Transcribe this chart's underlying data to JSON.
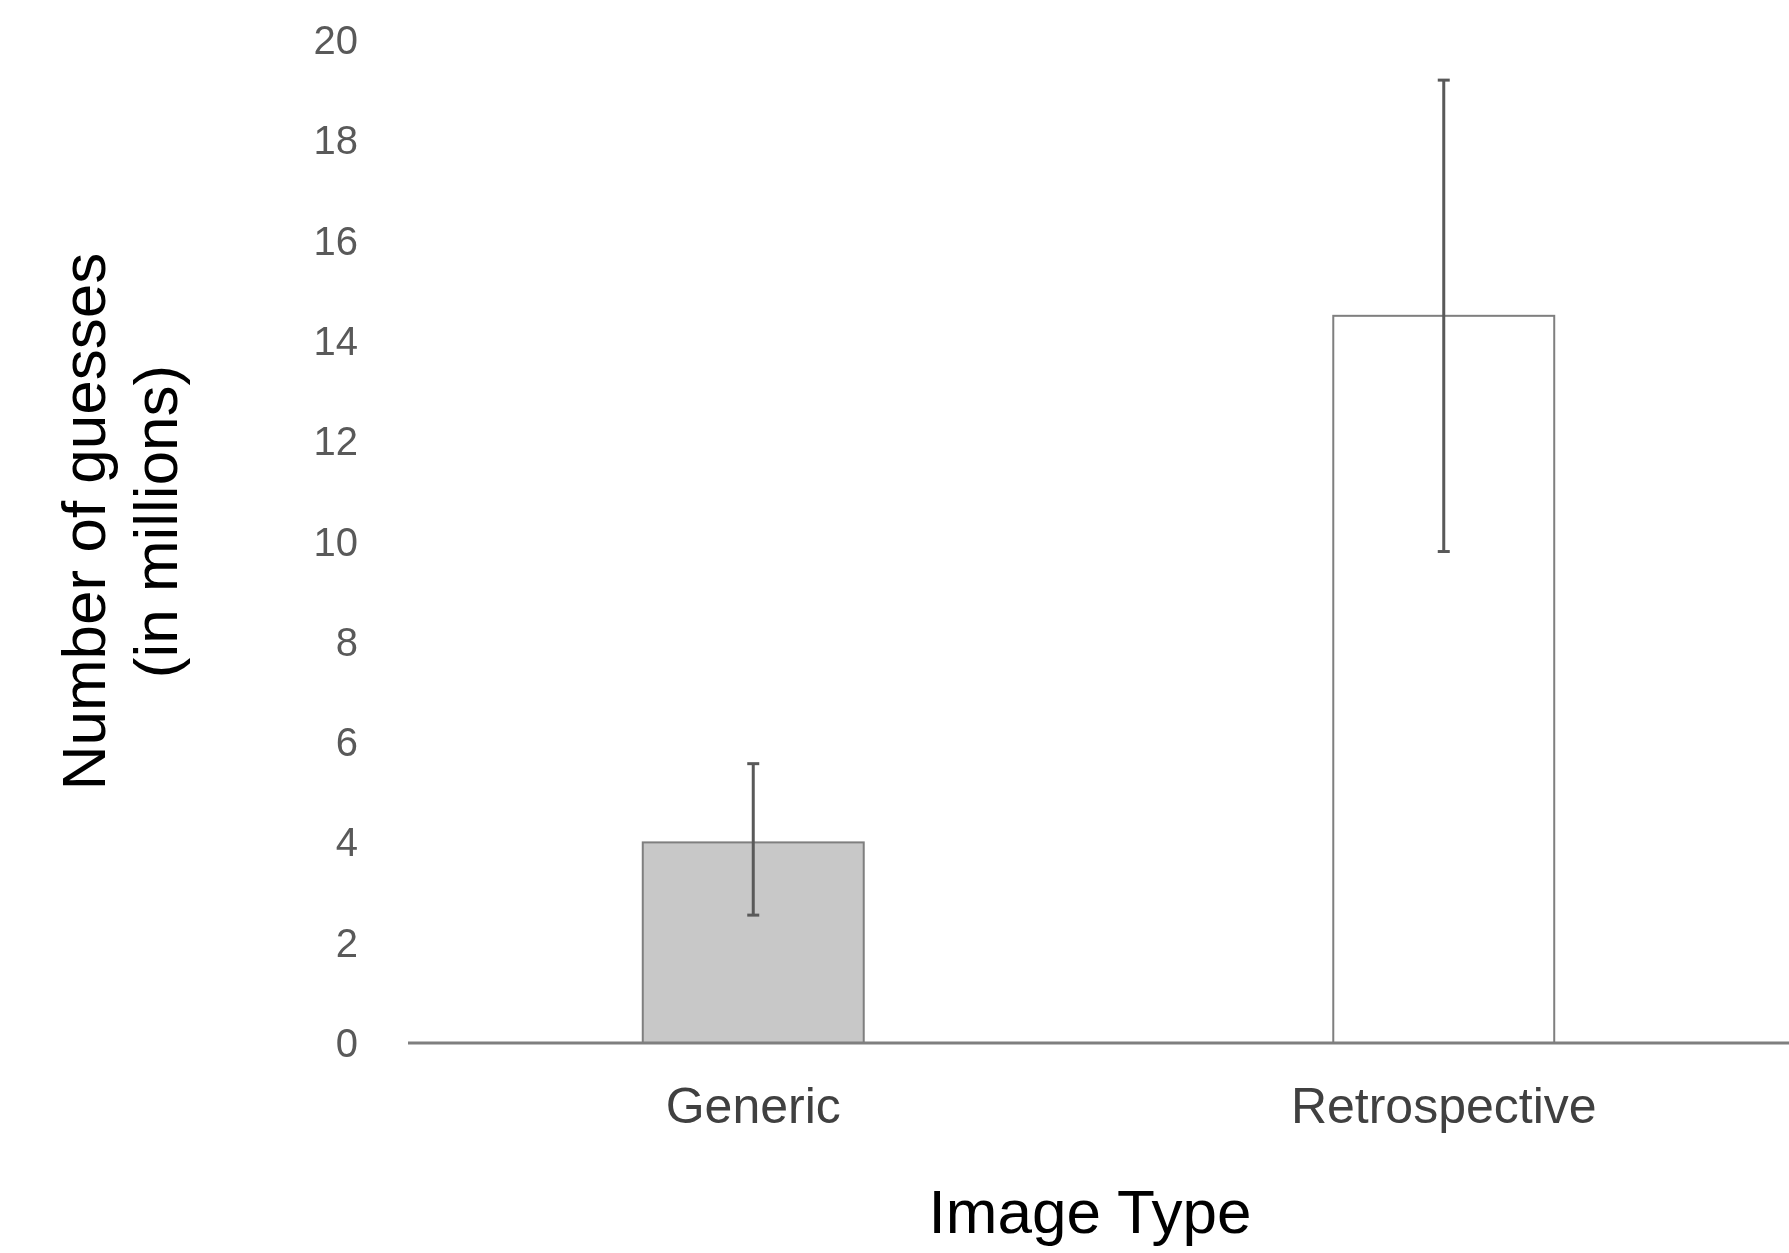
{
  "chart_data": {
    "type": "bar",
    "xlabel": "Image Type",
    "ylabel": "Number of guesses\n(in millions)",
    "categories": [
      "Generic",
      "Retrospective"
    ],
    "values": [
      4.0,
      14.5
    ],
    "errors": [
      [
        2.55,
        5.57
      ],
      [
        9.8,
        19.2
      ]
    ],
    "colors": [
      "#c8c8c8",
      "#ffffff"
    ],
    "ylim": [
      0,
      20
    ],
    "yticks": [
      0,
      2,
      4,
      6,
      8,
      10,
      12,
      14,
      16,
      18,
      20
    ]
  }
}
